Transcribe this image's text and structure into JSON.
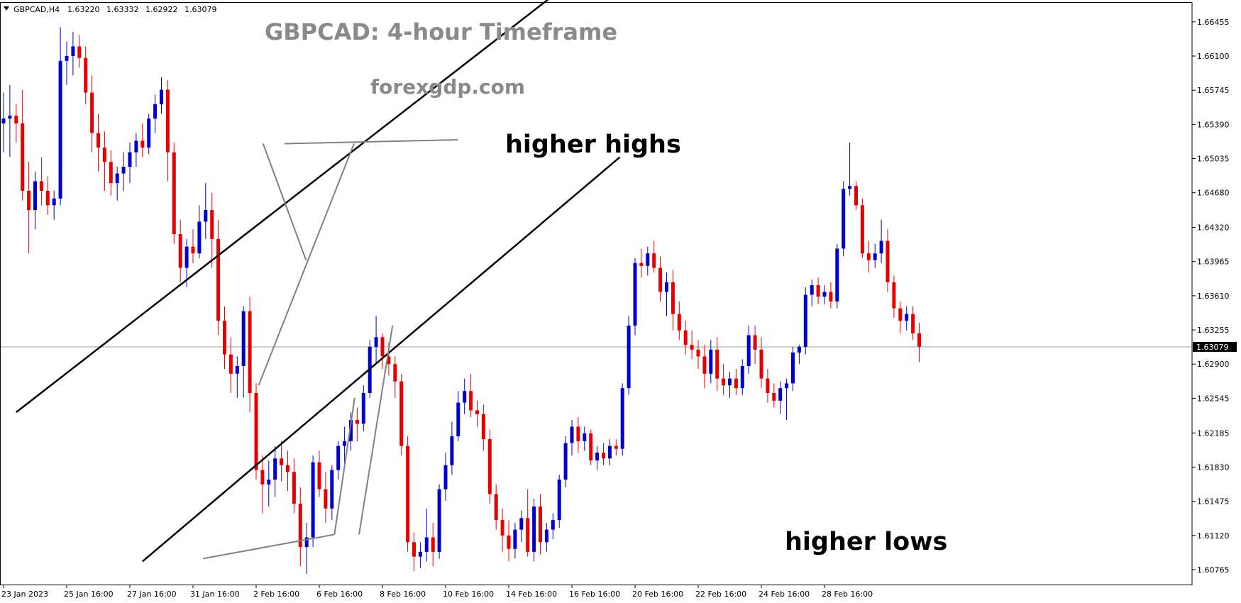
{
  "header": {
    "symbol": "GBPCAD,H4",
    "open": "1.63220",
    "high": "1.63332",
    "low": "1.62922",
    "close": "1.63079"
  },
  "chart_data": {
    "type": "candlestick",
    "title": "GBPCAD: 4-hour Timeframe",
    "subtitle": "forexgdp.com",
    "y_ticks": [
      "1.66455",
      "1.66100",
      "1.65745",
      "1.65390",
      "1.65035",
      "1.64680",
      "1.64320",
      "1.63965",
      "1.63610",
      "1.63255",
      "1.62900",
      "1.62545",
      "1.62185",
      "1.61830",
      "1.61475",
      "1.61120",
      "1.60765"
    ],
    "x_ticks": [
      "23 Jan 2023",
      "25 Jan 16:00",
      "27 Jan 16:00",
      "31 Jan 16:00",
      "2 Feb 16:00",
      "6 Feb 16:00",
      "8 Feb 16:00",
      "10 Feb 16:00",
      "14 Feb 16:00",
      "16 Feb 16:00",
      "20 Feb 16:00",
      "22 Feb 16:00",
      "24 Feb 16:00",
      "28 Feb 16:00"
    ],
    "ylim": [
      1.6061,
      1.6666
    ],
    "current_price": "1.63079",
    "current_price_value": 1.63079,
    "annotations": {
      "higher_highs": "higher highs",
      "higher_lows": "higher lows"
    },
    "colors": {
      "bull": "#0000cc",
      "bear": "#e80000",
      "channel": "#000000",
      "pointer": "#808080",
      "price_line": "#a0a0a0"
    },
    "channel_upper": [
      [
        2.0,
        1.624
      ],
      [
        90.0,
        1.6688
      ]
    ],
    "channel_lower": [
      [
        22.0,
        1.6085
      ],
      [
        97.6,
        1.6505
      ]
    ],
    "pointers": [
      [
        [
          55.5,
          1.6519
        ],
        [
          40.4,
          1.6268
        ]
      ],
      [
        [
          41.1,
          1.6519
        ],
        [
          47.9,
          1.6398
        ]
      ],
      [
        [
          44.5,
          1.6519
        ],
        [
          71.9,
          1.6523
        ]
      ],
      [
        [
          52.4,
          1.6113
        ],
        [
          31.6,
          1.6088
        ]
      ],
      [
        [
          52.4,
          1.6113
        ],
        [
          55.6,
          1.6255
        ]
      ],
      [
        [
          56.3,
          1.6113
        ],
        [
          61.6,
          1.633
        ]
      ]
    ],
    "candles": [
      [
        1.654,
        1.6572,
        1.651,
        1.6545
      ],
      [
        1.6545,
        1.658,
        1.6505,
        1.6548
      ],
      [
        1.6548,
        1.656,
        1.652,
        1.654
      ],
      [
        1.654,
        1.6575,
        1.646,
        1.647
      ],
      [
        1.647,
        1.65,
        1.6405,
        1.645
      ],
      [
        1.645,
        1.649,
        1.643,
        1.648
      ],
      [
        1.648,
        1.6505,
        1.6455,
        1.647
      ],
      [
        1.647,
        1.6485,
        1.6445,
        1.6455
      ],
      [
        1.6455,
        1.647,
        1.644,
        1.6462
      ],
      [
        1.6462,
        1.664,
        1.6455,
        1.6605
      ],
      [
        1.6605,
        1.6625,
        1.658,
        1.661
      ],
      [
        1.661,
        1.6635,
        1.659,
        1.662
      ],
      [
        1.662,
        1.6632,
        1.6598,
        1.6608
      ],
      [
        1.6608,
        1.662,
        1.656,
        1.6572
      ],
      [
        1.6572,
        1.659,
        1.651,
        1.653
      ],
      [
        1.653,
        1.655,
        1.649,
        1.6515
      ],
      [
        1.6515,
        1.6532,
        1.647,
        1.65
      ],
      [
        1.65,
        1.6512,
        1.6465,
        1.6478
      ],
      [
        1.6478,
        1.6495,
        1.646,
        1.6488
      ],
      [
        1.6488,
        1.651,
        1.647,
        1.6495
      ],
      [
        1.6495,
        1.652,
        1.6478,
        1.651
      ],
      [
        1.651,
        1.653,
        1.6495,
        1.6522
      ],
      [
        1.6522,
        1.654,
        1.6505,
        1.6515
      ],
      [
        1.6515,
        1.655,
        1.6508,
        1.6545
      ],
      [
        1.6545,
        1.657,
        1.653,
        1.656
      ],
      [
        1.656,
        1.6588,
        1.655,
        1.6575
      ],
      [
        1.6575,
        1.6585,
        1.648,
        1.651
      ],
      [
        1.651,
        1.652,
        1.6415,
        1.6425
      ],
      [
        1.6425,
        1.644,
        1.6375,
        1.639
      ],
      [
        1.639,
        1.642,
        1.637,
        1.6412
      ],
      [
        1.6412,
        1.643,
        1.6395,
        1.6405
      ],
      [
        1.6405,
        1.6455,
        1.64,
        1.6438
      ],
      [
        1.6438,
        1.6478,
        1.642,
        1.645
      ],
      [
        1.645,
        1.6468,
        1.639,
        1.642
      ],
      [
        1.642,
        1.644,
        1.632,
        1.6335
      ],
      [
        1.6335,
        1.635,
        1.6285,
        1.63
      ],
      [
        1.63,
        1.6318,
        1.626,
        1.628
      ],
      [
        1.628,
        1.6298,
        1.6255,
        1.6288
      ],
      [
        1.6288,
        1.635,
        1.6255,
        1.6345
      ],
      [
        1.6345,
        1.636,
        1.624,
        1.626
      ],
      [
        1.626,
        1.627,
        1.617,
        1.618
      ],
      [
        1.618,
        1.6195,
        1.6135,
        1.6165
      ],
      [
        1.6165,
        1.619,
        1.6142,
        1.617
      ],
      [
        1.617,
        1.6205,
        1.6152,
        1.6192
      ],
      [
        1.6192,
        1.621,
        1.6168,
        1.6185
      ],
      [
        1.6185,
        1.62,
        1.6158,
        1.6178
      ],
      [
        1.6178,
        1.6192,
        1.6135,
        1.6145
      ],
      [
        1.6145,
        1.6162,
        1.608,
        1.61
      ],
      [
        1.61,
        1.6125,
        1.6072,
        1.611
      ],
      [
        1.611,
        1.6195,
        1.61,
        1.6188
      ],
      [
        1.6188,
        1.62,
        1.6152,
        1.616
      ],
      [
        1.616,
        1.6178,
        1.6125,
        1.614
      ],
      [
        1.614,
        1.6185,
        1.6128,
        1.618
      ],
      [
        1.618,
        1.621,
        1.617,
        1.6205
      ],
      [
        1.6205,
        1.6225,
        1.6185,
        1.621
      ],
      [
        1.621,
        1.624,
        1.62,
        1.6232
      ],
      [
        1.6232,
        1.6245,
        1.621,
        1.6228
      ],
      [
        1.6228,
        1.6268,
        1.622,
        1.626
      ],
      [
        1.626,
        1.6315,
        1.6255,
        1.6308
      ],
      [
        1.6308,
        1.634,
        1.629,
        1.6318
      ],
      [
        1.6318,
        1.6322,
        1.6285,
        1.6298
      ],
      [
        1.6298,
        1.6312,
        1.6278,
        1.629
      ],
      [
        1.629,
        1.6298,
        1.6255,
        1.6272
      ],
      [
        1.6272,
        1.628,
        1.6195,
        1.6205
      ],
      [
        1.6205,
        1.6215,
        1.6095,
        1.6105
      ],
      [
        1.6105,
        1.6115,
        1.6075,
        1.609
      ],
      [
        1.609,
        1.6105,
        1.6078,
        1.6095
      ],
      [
        1.6095,
        1.614,
        1.6085,
        1.611
      ],
      [
        1.611,
        1.6125,
        1.608,
        1.6095
      ],
      [
        1.6095,
        1.6165,
        1.6088,
        1.616
      ],
      [
        1.616,
        1.6198,
        1.6148,
        1.6185
      ],
      [
        1.6185,
        1.623,
        1.6175,
        1.6215
      ],
      [
        1.6215,
        1.6262,
        1.621,
        1.625
      ],
      [
        1.625,
        1.6275,
        1.6238,
        1.6262
      ],
      [
        1.6262,
        1.628,
        1.6235,
        1.6242
      ],
      [
        1.6242,
        1.6252,
        1.6225,
        1.6238
      ],
      [
        1.6238,
        1.6248,
        1.62,
        1.6212
      ],
      [
        1.6212,
        1.6222,
        1.6145,
        1.6155
      ],
      [
        1.6155,
        1.6165,
        1.6118,
        1.6128
      ],
      [
        1.6128,
        1.614,
        1.6095,
        1.6112
      ],
      [
        1.6112,
        1.6128,
        1.6085,
        1.6098
      ],
      [
        1.6098,
        1.6125,
        1.6088,
        1.6118
      ],
      [
        1.6118,
        1.6138,
        1.6105,
        1.613
      ],
      [
        1.613,
        1.616,
        1.609,
        1.6095
      ],
      [
        1.6095,
        1.615,
        1.6085,
        1.6142
      ],
      [
        1.6142,
        1.6155,
        1.6092,
        1.6105
      ],
      [
        1.6105,
        1.6125,
        1.6095,
        1.6118
      ],
      [
        1.6118,
        1.6135,
        1.6108,
        1.6128
      ],
      [
        1.6128,
        1.6175,
        1.612,
        1.617
      ],
      [
        1.617,
        1.6215,
        1.6162,
        1.6208
      ],
      [
        1.6208,
        1.6232,
        1.6195,
        1.6225
      ],
      [
        1.6225,
        1.6235,
        1.6198,
        1.621
      ],
      [
        1.621,
        1.6225,
        1.62,
        1.6218
      ],
      [
        1.6218,
        1.6222,
        1.6185,
        1.619
      ],
      [
        1.619,
        1.6205,
        1.618,
        1.6198
      ],
      [
        1.6198,
        1.6208,
        1.6185,
        1.6192
      ],
      [
        1.6192,
        1.6212,
        1.6185,
        1.6205
      ],
      [
        1.6205,
        1.6212,
        1.6195,
        1.6202
      ],
      [
        1.6202,
        1.627,
        1.6195,
        1.6265
      ],
      [
        1.6265,
        1.634,
        1.6258,
        1.633
      ],
      [
        1.633,
        1.64,
        1.632,
        1.6395
      ],
      [
        1.6395,
        1.641,
        1.638,
        1.6392
      ],
      [
        1.6392,
        1.6412,
        1.6382,
        1.6405
      ],
      [
        1.6405,
        1.6418,
        1.6385,
        1.639
      ],
      [
        1.639,
        1.6402,
        1.6355,
        1.6365
      ],
      [
        1.6365,
        1.6385,
        1.634,
        1.6375
      ],
      [
        1.6375,
        1.6388,
        1.6325,
        1.6342
      ],
      [
        1.6342,
        1.6355,
        1.6315,
        1.6325
      ],
      [
        1.6325,
        1.6335,
        1.63,
        1.631
      ],
      [
        1.631,
        1.6325,
        1.6295,
        1.6305
      ],
      [
        1.6305,
        1.6315,
        1.6285,
        1.6298
      ],
      [
        1.6298,
        1.631,
        1.6265,
        1.628
      ],
      [
        1.628,
        1.6315,
        1.627,
        1.6305
      ],
      [
        1.6305,
        1.6318,
        1.6262,
        1.6275
      ],
      [
        1.6275,
        1.629,
        1.6258,
        1.6268
      ],
      [
        1.6268,
        1.6282,
        1.6255,
        1.6275
      ],
      [
        1.6275,
        1.6285,
        1.6258,
        1.6265
      ],
      [
        1.6265,
        1.6295,
        1.6258,
        1.6288
      ],
      [
        1.6288,
        1.633,
        1.628,
        1.632
      ],
      [
        1.632,
        1.633,
        1.629,
        1.6305
      ],
      [
        1.6305,
        1.6318,
        1.6265,
        1.6275
      ],
      [
        1.6275,
        1.6285,
        1.625,
        1.626
      ],
      [
        1.626,
        1.627,
        1.6245,
        1.6252
      ],
      [
        1.6252,
        1.6272,
        1.6238,
        1.6265
      ],
      [
        1.6265,
        1.6275,
        1.6232,
        1.627
      ],
      [
        1.627,
        1.6308,
        1.6262,
        1.6302
      ],
      [
        1.6302,
        1.631,
        1.629,
        1.6308
      ],
      [
        1.6308,
        1.637,
        1.63,
        1.6362
      ],
      [
        1.6362,
        1.6378,
        1.635,
        1.6372
      ],
      [
        1.6372,
        1.638,
        1.6352,
        1.636
      ],
      [
        1.636,
        1.6372,
        1.6352,
        1.6365
      ],
      [
        1.6365,
        1.6375,
        1.6348,
        1.6355
      ],
      [
        1.6355,
        1.6415,
        1.6348,
        1.641
      ],
      [
        1.641,
        1.648,
        1.6402,
        1.6472
      ],
      [
        1.6472,
        1.652,
        1.6465,
        1.6475
      ],
      [
        1.6475,
        1.648,
        1.645,
        1.6455
      ],
      [
        1.6455,
        1.6462,
        1.64,
        1.6405
      ],
      [
        1.6405,
        1.6418,
        1.6385,
        1.6398
      ],
      [
        1.6398,
        1.6415,
        1.639,
        1.6405
      ],
      [
        1.6405,
        1.644,
        1.6395,
        1.6418
      ],
      [
        1.6418,
        1.643,
        1.6365,
        1.6375
      ],
      [
        1.6375,
        1.6382,
        1.6338,
        1.6348
      ],
      [
        1.6348,
        1.6355,
        1.6322,
        1.6335
      ],
      [
        1.6335,
        1.635,
        1.6325,
        1.6342
      ],
      [
        1.6342,
        1.635,
        1.6315,
        1.6322
      ],
      [
        1.6322,
        1.6333,
        1.6292,
        1.6308
      ]
    ]
  }
}
